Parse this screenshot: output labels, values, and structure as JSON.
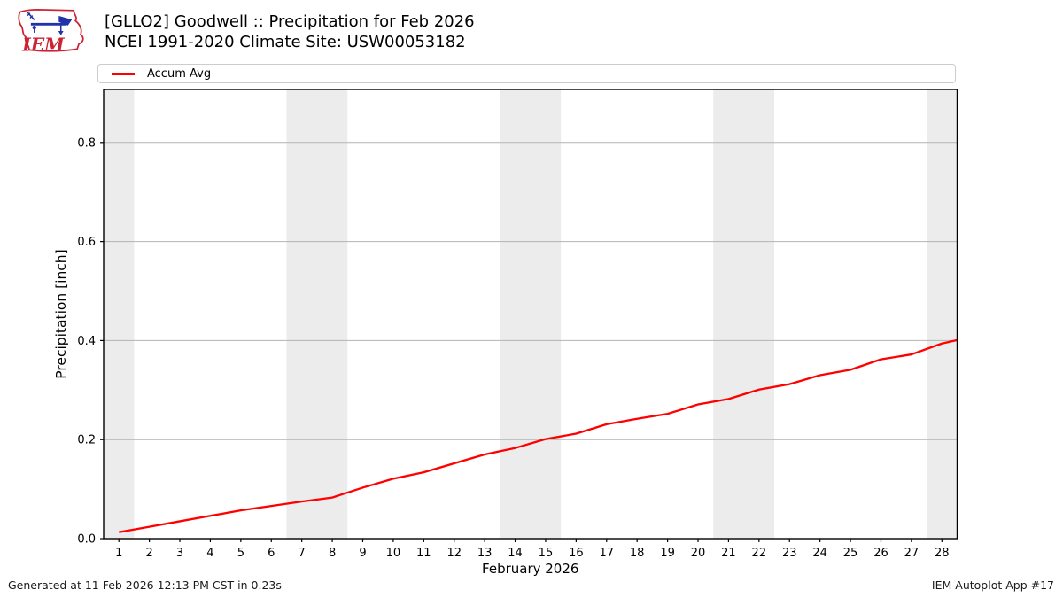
{
  "header": {
    "title_line1": "[GLLO2] Goodwell :: Precipitation for Feb 2026",
    "title_line2": "NCEI 1991-2020 Climate Site: USW00053182",
    "logo_text": "IEM"
  },
  "legend": {
    "position": "top",
    "entries": [
      {
        "label": "Accum Avg",
        "color": "#ff0000"
      }
    ]
  },
  "footer": {
    "left": "Generated at 11 Feb 2026 12:13 PM CST in 0.23s",
    "right": "IEM Autoplot App #17"
  },
  "colors": {
    "line": "#ff0000",
    "weekend_band": "#ececec",
    "gridline": "#b3b3b3",
    "axis_frame": "#000000",
    "logo_red": "#cc2233",
    "logo_blue": "#2233aa"
  },
  "chart_data": {
    "type": "line",
    "title": "[GLLO2] Goodwell :: Precipitation for Feb 2026",
    "subtitle": "NCEI 1991-2020 Climate Site: USW00053182",
    "xlabel": "February 2026",
    "ylabel": "Precipitation [inch]",
    "xlim": [
      0.5,
      28.5
    ],
    "ylim": [
      0,
      0.907
    ],
    "grid": "y",
    "yticks": [
      0.0,
      0.2,
      0.4,
      0.6,
      0.8
    ],
    "xticks": [
      1,
      2,
      3,
      4,
      5,
      6,
      7,
      8,
      9,
      10,
      11,
      12,
      13,
      14,
      15,
      16,
      17,
      18,
      19,
      20,
      21,
      22,
      23,
      24,
      25,
      26,
      27,
      28
    ],
    "shaded_bands_x": [
      [
        0.5,
        1.5
      ],
      [
        6.5,
        8.5
      ],
      [
        13.5,
        15.5
      ],
      [
        20.5,
        22.5
      ],
      [
        27.5,
        28.5
      ]
    ],
    "series": [
      {
        "name": "Accum Avg",
        "color": "#ff0000",
        "x": [
          1,
          2,
          3,
          4,
          5,
          6,
          7,
          8,
          9,
          10,
          11,
          12,
          13,
          14,
          15,
          16,
          17,
          18,
          19,
          20,
          21,
          22,
          23,
          24,
          25,
          26,
          27,
          28,
          28.5
        ],
        "y": [
          0.013,
          0.024,
          0.035,
          0.046,
          0.057,
          0.066,
          0.075,
          0.083,
          0.103,
          0.121,
          0.134,
          0.152,
          0.17,
          0.183,
          0.201,
          0.212,
          0.231,
          0.242,
          0.252,
          0.271,
          0.282,
          0.301,
          0.312,
          0.33,
          0.341,
          0.362,
          0.372,
          0.394,
          0.401
        ]
      }
    ]
  }
}
